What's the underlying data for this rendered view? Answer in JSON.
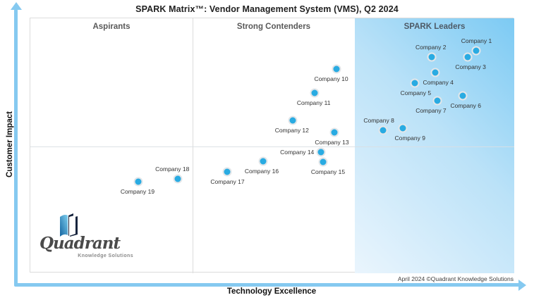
{
  "title": "SPARK Matrix™: Vendor Management System (VMS), Q2 2024",
  "axes": {
    "x_label": "Technology Excellence",
    "y_label": "Customer Impact"
  },
  "quadrant_labels": {
    "aspirants": "Aspirants",
    "strong_contenders": "Strong Contenders",
    "spark_leaders": "SPARK Leaders"
  },
  "footnote": "April 2024 ©Quadrant Knowledge Solutions",
  "logo": {
    "name": "Quadrant",
    "tagline": "Knowledge Solutions"
  },
  "colors": {
    "dot": "#29ABE2",
    "dot_ring": "#E2E6E9",
    "leader_gradient_start": "#7CCAF3",
    "leader_gradient_end": "#EAF5FD",
    "axis_arrow": "#85C9F0",
    "grid": "#DCDCDC"
  },
  "chart_data": {
    "type": "scatter",
    "title": "SPARK Matrix™: Vendor Management System (VMS), Q2 2024",
    "xlabel": "Technology Excellence",
    "ylabel": "Customer Impact",
    "x_range": [
      0,
      100
    ],
    "y_range": [
      0,
      100
    ],
    "grid": "3-column quadrants with mid horizontal divider; right column shaded = SPARK Leaders",
    "legend_position": "none",
    "points": [
      {
        "label": "Company 1",
        "x": 92.2,
        "y": 87.3,
        "segment": "SPARK Leaders",
        "label_pos": "above",
        "dx": 0
      },
      {
        "label": "Company 2",
        "x": 82.9,
        "y": 84.8,
        "segment": "SPARK Leaders",
        "label_pos": "above",
        "dx": -1
      },
      {
        "label": "Company 3",
        "x": 90.4,
        "y": 84.8,
        "segment": "SPARK Leaders",
        "label_pos": "below",
        "dx": 4
      },
      {
        "label": "Company 4",
        "x": 83.7,
        "y": 78.8,
        "segment": "SPARK Leaders",
        "label_pos": "below",
        "dx": 4
      },
      {
        "label": "Company 5",
        "x": 79.5,
        "y": 74.6,
        "segment": "SPARK Leaders",
        "label_pos": "below",
        "dx": 1
      },
      {
        "label": "Company 6",
        "x": 89.4,
        "y": 69.6,
        "segment": "SPARK Leaders",
        "label_pos": "below",
        "dx": 4
      },
      {
        "label": "Company 7",
        "x": 84.1,
        "y": 67.6,
        "segment": "SPARK Leaders",
        "label_pos": "below",
        "dx": -9
      },
      {
        "label": "Company 8",
        "x": 72.9,
        "y": 56.1,
        "segment": "SPARK Leaders",
        "label_pos": "above",
        "dx": -6
      },
      {
        "label": "Company 9",
        "x": 77.0,
        "y": 57.0,
        "segment": "SPARK Leaders",
        "label_pos": "below",
        "dx": 10
      },
      {
        "label": "Company 10",
        "x": 63.2,
        "y": 80.0,
        "segment": "Strong Contenders",
        "label_pos": "below",
        "dx": -7
      },
      {
        "label": "Company 11",
        "x": 58.7,
        "y": 70.8,
        "segment": "Strong Contenders",
        "label_pos": "below",
        "dx": -1
      },
      {
        "label": "Company 12",
        "x": 54.2,
        "y": 60.0,
        "segment": "Strong Contenders",
        "label_pos": "below",
        "dx": -1
      },
      {
        "label": "Company 13",
        "x": 62.9,
        "y": 55.3,
        "segment": "Strong Contenders",
        "label_pos": "below",
        "dx": -4
      },
      {
        "label": "Company 14",
        "x": 60.1,
        "y": 47.4,
        "segment": "Strong Contenders",
        "label_pos": "left",
        "dx": 0
      },
      {
        "label": "Company 15",
        "x": 60.5,
        "y": 43.6,
        "segment": "Strong Contenders",
        "label_pos": "below",
        "dx": 7
      },
      {
        "label": "Company 16",
        "x": 48.1,
        "y": 43.9,
        "segment": "Strong Contenders",
        "label_pos": "below",
        "dx": -2
      },
      {
        "label": "Company 17",
        "x": 40.6,
        "y": 39.9,
        "segment": "Strong Contenders",
        "label_pos": "below",
        "dx": 1
      },
      {
        "label": "Company 18",
        "x": 30.5,
        "y": 36.9,
        "segment": "Aspirants",
        "label_pos": "above",
        "dx": -8
      },
      {
        "label": "Company 19",
        "x": 22.3,
        "y": 35.8,
        "segment": "Aspirants",
        "label_pos": "below",
        "dx": -1
      }
    ]
  }
}
